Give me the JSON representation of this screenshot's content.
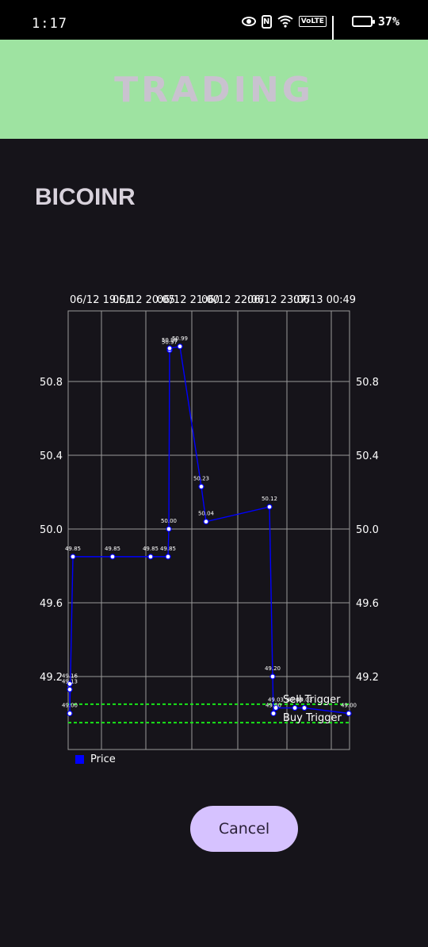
{
  "status_bar": {
    "time": "1:17",
    "battery_percent": "37%",
    "volte_label": "VoLTE",
    "icons": [
      "eye-icon",
      "nfc-icon",
      "wifi-icon",
      "volte-icon",
      "signal-icon",
      "battery-icon"
    ]
  },
  "header": {
    "title": "TRADING",
    "background": "#9ee3a1"
  },
  "symbol": "BICOINR",
  "chart_data": {
    "type": "line",
    "x_tick_labels": [
      "06/12 19:51",
      "06/12 20:05",
      "06/12 21:00",
      "06/12 22:06",
      "06/12 23:06",
      "07/13 00:49"
    ],
    "y_ticks": [
      50.8,
      50.4,
      50.0,
      49.6,
      49.2
    ],
    "y_tick_labels": [
      "50.8",
      "50.4",
      "50.0",
      "49.6",
      "49.2"
    ],
    "ylim": [
      48.94,
      51.14
    ],
    "grid": true,
    "series": [
      {
        "name": "Price",
        "color": "#0000ff",
        "values": [
          49.16,
          49.13,
          49.0,
          49.85,
          49.85,
          49.85,
          49.85,
          50.0,
          50.97,
          50.98,
          50.99,
          50.23,
          50.04,
          50.12,
          49.2,
          49.0,
          49.03,
          49.03,
          49.03,
          49.0
        ]
      }
    ],
    "point_labels": [
      "49.16",
      "49.13",
      "49.00",
      "49.85",
      "49.85",
      "49.85",
      "49.85",
      "50.00",
      "50.97",
      "50.98",
      "50.99",
      "50.23",
      "50.04",
      "50.12",
      "49.20",
      "49.00",
      "49.03",
      "49.03",
      "49.03",
      "49.00"
    ],
    "triggers": [
      {
        "label": "Sell Trigger",
        "value": 49.05,
        "color": "#19e619"
      },
      {
        "label": "Buy Trigger",
        "value": 48.95,
        "color": "#19e619"
      }
    ],
    "legend": {
      "label": "Price",
      "position": "bottom-left"
    }
  },
  "cancel_button": {
    "label": "Cancel"
  }
}
